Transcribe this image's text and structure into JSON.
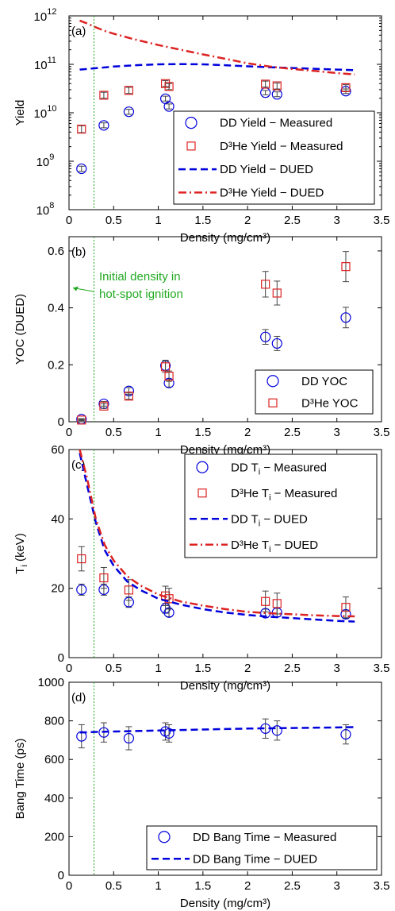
{
  "colors": {
    "dd": "#0000dd",
    "d3he": "#dd2222",
    "vline": "#22aa22",
    "annotation": "#22aa22",
    "axis": "#000000"
  },
  "vline_x": 0.28,
  "chart_data": [
    {
      "panel_label": "(a)",
      "type": "scatter",
      "xlabel": "Density (mg/cm³)",
      "ylabel": "Yield",
      "xlim": [
        0,
        3.5
      ],
      "ylim": [
        100000000.0,
        1000000000000.0
      ],
      "yscale": "log",
      "xticks": [
        "0",
        "0.5",
        "1",
        "1.5",
        "2",
        "2.5",
        "3",
        "3.5"
      ],
      "yticks": [
        {
          "base": "10",
          "exp": "8"
        },
        {
          "base": "10",
          "exp": "9"
        },
        {
          "base": "10",
          "exp": "10"
        },
        {
          "base": "10",
          "exp": "11"
        },
        {
          "base": "10",
          "exp": "12"
        }
      ],
      "legend_position": "lower-right",
      "series": [
        {
          "name": "DD Yield − Measured",
          "kind": "circles",
          "color": "dd",
          "x": [
            0.14,
            0.39,
            0.67,
            1.08,
            1.12,
            2.2,
            2.33,
            3.1
          ],
          "y": [
            700000000.0,
            5500000000.0,
            10500000000.0,
            19500000000.0,
            13500000000.0,
            26000000000.0,
            24000000000.0,
            28000000000.0
          ],
          "err_lo": [
            620000000.0,
            4900000000.0,
            9300000000.0,
            17500000000.0,
            12000000000.0,
            23500000000.0,
            21500000000.0,
            25000000000.0
          ],
          "err_hi": [
            790000000.0,
            6200000000.0,
            11800000000.0,
            22000000000.0,
            15200000000.0,
            29000000000.0,
            27000000000.0,
            31000000000.0
          ]
        },
        {
          "name": "D³He Yield − Measured",
          "kind": "squares",
          "color": "d3he",
          "x": [
            0.14,
            0.39,
            0.67,
            1.08,
            1.12,
            2.2,
            2.33,
            3.1
          ],
          "y": [
            4600000000.0,
            23000000000.0,
            29000000000.0,
            40000000000.0,
            35000000000.0,
            39000000000.0,
            36000000000.0,
            33000000000.0
          ],
          "err_lo": [
            3900000000.0,
            20000000000.0,
            25000000000.0,
            35000000000.0,
            30000000000.0,
            34000000000.0,
            31000000000.0,
            28000000000.0
          ],
          "err_hi": [
            5400000000.0,
            26500000000.0,
            33500000000.0,
            46000000000.0,
            40000000000.0,
            45000000000.0,
            41000000000.0,
            38000000000.0
          ]
        },
        {
          "name": "DD Yield − DUED",
          "kind": "dashed",
          "color": "dd",
          "x": [
            0.12,
            0.3,
            0.5,
            0.75,
            1.0,
            1.25,
            1.5,
            1.75,
            2.0,
            2.25,
            2.5,
            2.75,
            3.0,
            3.2
          ],
          "y": [
            78000000000.0,
            83000000000.0,
            90000000000.0,
            96000000000.0,
            100000000000.0,
            101000000000.0,
            100000000000.0,
            96000000000.0,
            91000000000.0,
            87000000000.0,
            84000000000.0,
            81000000000.0,
            78000000000.0,
            76000000000.0
          ]
        },
        {
          "name": "D³He Yield − DUED",
          "kind": "dashdot",
          "color": "d3he",
          "x": [
            0.12,
            0.2,
            0.3,
            0.4,
            0.5,
            0.7,
            1.0,
            1.25,
            1.5,
            1.75,
            2.0,
            2.25,
            2.5,
            2.75,
            3.0,
            3.2
          ],
          "y": [
            800000000000.0,
            700000000000.0,
            580000000000.0,
            490000000000.0,
            430000000000.0,
            340000000000.0,
            250000000000.0,
            200000000000.0,
            160000000000.0,
            130000000000.0,
            105000000000.0,
            90000000000.0,
            80000000000.0,
            73000000000.0,
            66000000000.0,
            62000000000.0
          ]
        }
      ]
    },
    {
      "panel_label": "(b)",
      "type": "scatter",
      "xlabel": "Density (mg/cm³)",
      "ylabel": "YOC (DUED)",
      "xlim": [
        0,
        3.5
      ],
      "ylim": [
        0,
        0.65
      ],
      "yscale": "linear",
      "xticks": [
        "0",
        "0.5",
        "1",
        "1.5",
        "2",
        "2.5",
        "3",
        "3.5"
      ],
      "yticks": [
        "0",
        "0.2",
        "0.4",
        "0.6"
      ],
      "annotation": {
        "lines": [
          "Initial density in",
          "hot-spot ignition"
        ],
        "target_y": 0.47
      },
      "legend_position": "lower-right",
      "series": [
        {
          "name": "DD YOC",
          "kind": "circles",
          "color": "dd",
          "x": [
            0.14,
            0.39,
            0.67,
            1.08,
            1.12,
            2.2,
            2.33,
            3.1
          ],
          "y": [
            0.009,
            0.063,
            0.108,
            0.197,
            0.136,
            0.298,
            0.275,
            0.366
          ],
          "err_lo": [
            0.007,
            0.055,
            0.096,
            0.178,
            0.122,
            0.272,
            0.25,
            0.33
          ],
          "err_hi": [
            0.011,
            0.071,
            0.12,
            0.216,
            0.15,
            0.324,
            0.3,
            0.402
          ]
        },
        {
          "name": "D³He YOC",
          "kind": "squares",
          "color": "d3he",
          "x": [
            0.14,
            0.39,
            0.67,
            1.08,
            1.12,
            2.2,
            2.33,
            3.1
          ],
          "y": [
            0.006,
            0.055,
            0.09,
            0.193,
            0.16,
            0.483,
            0.452,
            0.545
          ],
          "err_lo": [
            0.004,
            0.047,
            0.079,
            0.173,
            0.142,
            0.438,
            0.41,
            0.492
          ],
          "err_hi": [
            0.008,
            0.063,
            0.101,
            0.213,
            0.178,
            0.528,
            0.494,
            0.598
          ]
        }
      ]
    },
    {
      "panel_label": "(c)",
      "type": "scatter",
      "xlabel": "Density (mg/cm³)",
      "ylabel": "T",
      "ylabel_sub": "i",
      "ylabel_suffix": " (keV)",
      "xlim": [
        0,
        3.5
      ],
      "ylim": [
        0,
        60
      ],
      "yscale": "linear",
      "xticks": [
        "0",
        "0.5",
        "1",
        "1.5",
        "2",
        "2.5",
        "3",
        "3.5"
      ],
      "yticks": [
        "0",
        "20",
        "40",
        "60"
      ],
      "legend_position": "top-right",
      "series": [
        {
          "name": "DD T",
          "name_sub": "i",
          "name_suffix": " − Measured",
          "kind": "circles",
          "color": "dd",
          "x": [
            0.14,
            0.39,
            0.67,
            1.08,
            1.12,
            2.2,
            2.33,
            3.1
          ],
          "y": [
            19.6,
            19.6,
            16.0,
            14.2,
            13.0,
            12.8,
            13.0,
            12.5
          ],
          "err_lo": [
            18.0,
            18.0,
            14.5,
            12.8,
            11.8,
            11.6,
            11.8,
            11.3
          ],
          "err_hi": [
            21.2,
            21.2,
            17.5,
            15.6,
            14.2,
            14.0,
            14.2,
            13.7
          ]
        },
        {
          "name": "D³He T",
          "name_sub": "i",
          "name_suffix": " − Measured",
          "kind": "squares",
          "color": "d3he",
          "x": [
            0.14,
            0.39,
            0.67,
            1.08,
            1.12,
            2.2,
            2.33,
            3.1
          ],
          "y": [
            28.5,
            23.0,
            19.5,
            17.8,
            17.0,
            16.2,
            15.6,
            14.5
          ],
          "err_lo": [
            25.0,
            20.0,
            16.5,
            15.0,
            14.0,
            13.2,
            12.6,
            11.5
          ],
          "err_hi": [
            32.0,
            26.0,
            22.5,
            20.6,
            20.0,
            19.2,
            18.6,
            17.5
          ]
        },
        {
          "name": "DD T",
          "name_sub": "i",
          "name_suffix": " − DUED",
          "kind": "dashed",
          "color": "dd",
          "x": [
            0.12,
            0.2,
            0.3,
            0.4,
            0.5,
            0.65,
            0.8,
            1.0,
            1.25,
            1.5,
            1.75,
            2.0,
            2.25,
            2.5,
            2.75,
            3.0,
            3.2
          ],
          "y": [
            59,
            50,
            39,
            31,
            26.5,
            22,
            19.5,
            17,
            15.3,
            14.0,
            13.0,
            12.3,
            11.8,
            11.4,
            11.0,
            10.6,
            10.4
          ]
        },
        {
          "name": "D³He T",
          "name_sub": "i",
          "name_suffix": " − DUED",
          "kind": "dashdot",
          "color": "d3he",
          "x": [
            0.12,
            0.2,
            0.3,
            0.4,
            0.5,
            0.65,
            0.8,
            1.0,
            1.25,
            1.5,
            1.75,
            2.0,
            2.25,
            2.5,
            2.75,
            3.0,
            3.2
          ],
          "y": [
            60,
            52,
            40,
            32.5,
            28,
            23.5,
            20.8,
            18.2,
            16.2,
            15.0,
            14.0,
            13.2,
            12.8,
            12.5,
            12.2,
            12.0,
            11.9
          ]
        }
      ]
    },
    {
      "panel_label": "(d)",
      "type": "scatter",
      "xlabel": "Density (mg/cm³)",
      "ylabel": "Bang Time (ps)",
      "xlim": [
        0,
        3.5
      ],
      "ylim": [
        0,
        1000
      ],
      "yscale": "linear",
      "xticks": [
        "0",
        "0.5",
        "1",
        "1.5",
        "2",
        "2.5",
        "3",
        "3.5"
      ],
      "yticks": [
        "0",
        "200",
        "400",
        "600",
        "800",
        "1000"
      ],
      "legend_position": "bottom-right",
      "series": [
        {
          "name": "DD Bang Time − Measured",
          "kind": "circles",
          "color": "dd",
          "x": [
            0.14,
            0.39,
            0.67,
            1.08,
            1.12,
            2.2,
            2.33,
            3.1
          ],
          "y": [
            720,
            740,
            710,
            745,
            735,
            760,
            750,
            730
          ],
          "err_lo": [
            660,
            690,
            650,
            700,
            690,
            710,
            700,
            680
          ],
          "err_hi": [
            780,
            790,
            770,
            790,
            780,
            810,
            800,
            780
          ]
        },
        {
          "name": "DD Bang Time − DUED",
          "kind": "dashed",
          "color": "dd",
          "x": [
            0.12,
            0.5,
            1.0,
            1.5,
            2.0,
            2.5,
            3.0,
            3.2
          ],
          "y": [
            740,
            745,
            750,
            755,
            760,
            763,
            766,
            768
          ]
        }
      ]
    }
  ]
}
